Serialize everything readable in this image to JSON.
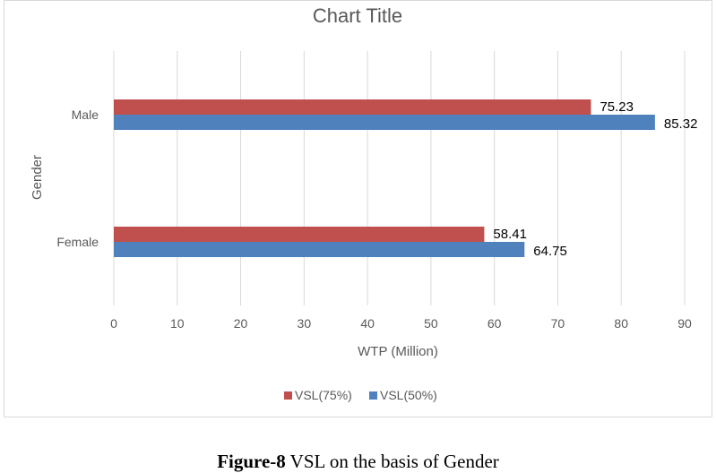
{
  "chart_data": {
    "type": "bar",
    "orientation": "horizontal",
    "title": "Chart Title",
    "xlabel": "WTP (Million)",
    "ylabel": "Gender",
    "categories": [
      "Female",
      "Male"
    ],
    "series": [
      {
        "name": "VSL(75%)",
        "values": [
          58.41,
          75.23
        ],
        "color": "#c0504d"
      },
      {
        "name": "VSL(50%)",
        "values": [
          64.75,
          85.32
        ],
        "color": "#4f81bd"
      }
    ],
    "data_labels": [
      [
        "58.41",
        "75.23"
      ],
      [
        "64.75",
        "85.32"
      ]
    ],
    "xlim": [
      0,
      90
    ],
    "xticks": [
      "0",
      "10",
      "20",
      "30",
      "40",
      "50",
      "60",
      "70",
      "80",
      "90"
    ],
    "grid": "vertical",
    "legend_position": "bottom"
  },
  "caption": {
    "label": "Figure-8",
    "text": " VSL on the basis of Gender"
  }
}
